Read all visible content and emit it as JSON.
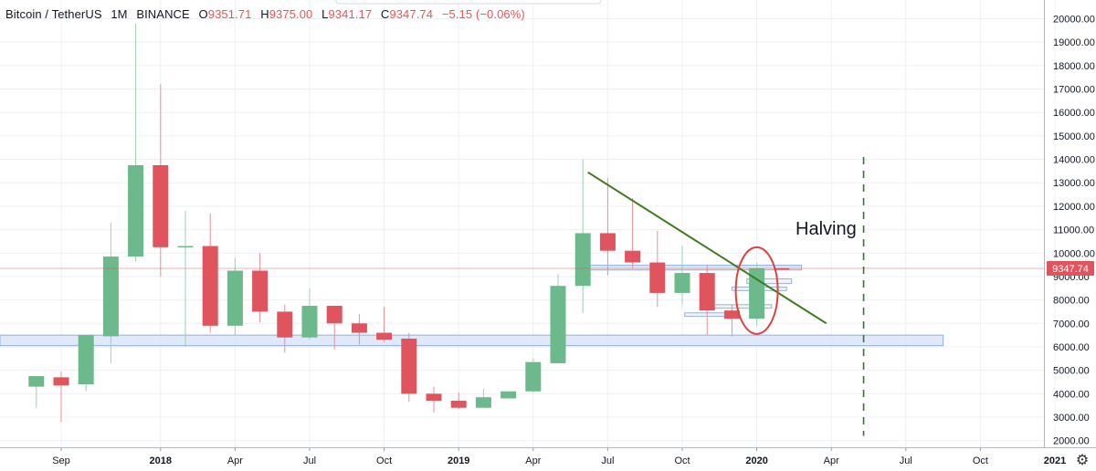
{
  "legend": {
    "symbol": "Bitcoin / TetherUS",
    "interval": "1M",
    "exchange": "BINANCE",
    "open_label": "O",
    "open": "9351.71",
    "high_label": "H",
    "high": "9375.00",
    "low_label": "L",
    "low": "9341.17",
    "close_label": "C",
    "close": "9347.74",
    "change": "−5.15 (−0.06%)"
  },
  "colors": {
    "up": "#6cb98c",
    "down": "#e0545e",
    "trendline": "#3e7a1d",
    "halving_line": "#2d7a2b",
    "ellipse": "#e0413d",
    "zone": "#d8e3f7",
    "price_tag": "#e0545e"
  },
  "price_tag": "9347.74",
  "settings_icon": "gear-icon",
  "chart_data": {
    "type": "candlestick",
    "y_ticks": [
      "20000.00",
      "19000.00",
      "18000.00",
      "17000.00",
      "16000.00",
      "15000.00",
      "14000.00",
      "13000.00",
      "12000.00",
      "11000.00",
      "10000.00",
      "9000.00",
      "8000.00",
      "7000.00",
      "6000.00",
      "5000.00",
      "4000.00",
      "3000.00",
      "2000.00"
    ],
    "ylim": [
      1900,
      20800
    ],
    "x_ticks": [
      {
        "label": "Sep",
        "bold": false,
        "m": 0
      },
      {
        "label": "2018",
        "bold": true,
        "m": 4
      },
      {
        "label": "Apr",
        "bold": false,
        "m": 7
      },
      {
        "label": "Jul",
        "bold": false,
        "m": 10
      },
      {
        "label": "Oct",
        "bold": false,
        "m": 13
      },
      {
        "label": "2019",
        "bold": true,
        "m": 16
      },
      {
        "label": "Apr",
        "bold": false,
        "m": 19
      },
      {
        "label": "Jul",
        "bold": false,
        "m": 22
      },
      {
        "label": "Oct",
        "bold": false,
        "m": 25
      },
      {
        "label": "2020",
        "bold": true,
        "m": 28
      },
      {
        "label": "Apr",
        "bold": false,
        "m": 31
      },
      {
        "label": "Jul",
        "bold": false,
        "m": 34
      },
      {
        "label": "Oct",
        "bold": false,
        "m": 37
      },
      {
        "label": "2021",
        "bold": true,
        "m": 40
      }
    ],
    "candles": [
      {
        "m": -1,
        "o": 4300,
        "h": 4750,
        "l": 3400,
        "c": 4750
      },
      {
        "m": 0,
        "o": 4700,
        "h": 4950,
        "l": 2800,
        "c": 4350
      },
      {
        "m": 1,
        "o": 4400,
        "h": 6500,
        "l": 4100,
        "c": 6500
      },
      {
        "m": 2,
        "o": 6450,
        "h": 11300,
        "l": 5300,
        "c": 9850
      },
      {
        "m": 3,
        "o": 9850,
        "h": 19800,
        "l": 9650,
        "c": 13750
      },
      {
        "m": 4,
        "o": 13750,
        "h": 17200,
        "l": 9000,
        "c": 10250
      },
      {
        "m": 5,
        "o": 10250,
        "h": 11800,
        "l": 6000,
        "c": 10300
      },
      {
        "m": 6,
        "o": 10300,
        "h": 11700,
        "l": 6600,
        "c": 6900
      },
      {
        "m": 7,
        "o": 6900,
        "h": 9800,
        "l": 6500,
        "c": 9250
      },
      {
        "m": 8,
        "o": 9250,
        "h": 10000,
        "l": 7050,
        "c": 7500
      },
      {
        "m": 9,
        "o": 7500,
        "h": 7800,
        "l": 5750,
        "c": 6400
      },
      {
        "m": 10,
        "o": 6400,
        "h": 8500,
        "l": 6300,
        "c": 7750
      },
      {
        "m": 11,
        "o": 7750,
        "h": 7750,
        "l": 5900,
        "c": 7000
      },
      {
        "m": 12,
        "o": 7000,
        "h": 7400,
        "l": 6100,
        "c": 6600
      },
      {
        "m": 13,
        "o": 6600,
        "h": 7700,
        "l": 6200,
        "c": 6300
      },
      {
        "m": 14,
        "o": 6350,
        "h": 6600,
        "l": 3650,
        "c": 4000
      },
      {
        "m": 15,
        "o": 4000,
        "h": 4300,
        "l": 3200,
        "c": 3700
      },
      {
        "m": 16,
        "o": 3700,
        "h": 4050,
        "l": 3350,
        "c": 3400
      },
      {
        "m": 17,
        "o": 3400,
        "h": 4200,
        "l": 3400,
        "c": 3850
      },
      {
        "m": 18,
        "o": 3800,
        "h": 4100,
        "l": 3800,
        "c": 4100
      },
      {
        "m": 19,
        "o": 4100,
        "h": 5500,
        "l": 4050,
        "c": 5350
      },
      {
        "m": 20,
        "o": 5300,
        "h": 9100,
        "l": 5300,
        "c": 8600
      },
      {
        "m": 21,
        "o": 8600,
        "h": 14000,
        "l": 7450,
        "c": 10850
      },
      {
        "m": 22,
        "o": 10850,
        "h": 13200,
        "l": 9050,
        "c": 10100
      },
      {
        "m": 23,
        "o": 10100,
        "h": 12350,
        "l": 9350,
        "c": 9600
      },
      {
        "m": 24,
        "o": 9600,
        "h": 10950,
        "l": 7700,
        "c": 8300
      },
      {
        "m": 25,
        "o": 8300,
        "h": 10300,
        "l": 7800,
        "c": 9150
      },
      {
        "m": 26,
        "o": 9150,
        "h": 9500,
        "l": 6500,
        "c": 7550
      },
      {
        "m": 27,
        "o": 7550,
        "h": 7800,
        "l": 6450,
        "c": 7200
      },
      {
        "m": 28,
        "o": 7200,
        "h": 9600,
        "l": 6900,
        "c": 9350
      },
      {
        "m": 29,
        "o": 9351.71,
        "h": 9375,
        "l": 9341.17,
        "c": 9347.74
      }
    ],
    "current_price": 9347.74,
    "annotations": {
      "halving_label": "Halving",
      "halving_m": 32.3,
      "trendline": {
        "m1": 21.2,
        "p1": 13450,
        "m2": 30.8,
        "p2": 7000
      },
      "support_zone": {
        "m1": -3,
        "m2": 35.5,
        "p1": 6050,
        "p2": 6500
      },
      "resistance_zone": {
        "m1": 21.2,
        "m2": 29.8,
        "p1": 9280,
        "p2": 9480
      },
      "ellipse": {
        "m": 28,
        "p_top": 10250,
        "p_bottom": 6550
      }
    }
  }
}
